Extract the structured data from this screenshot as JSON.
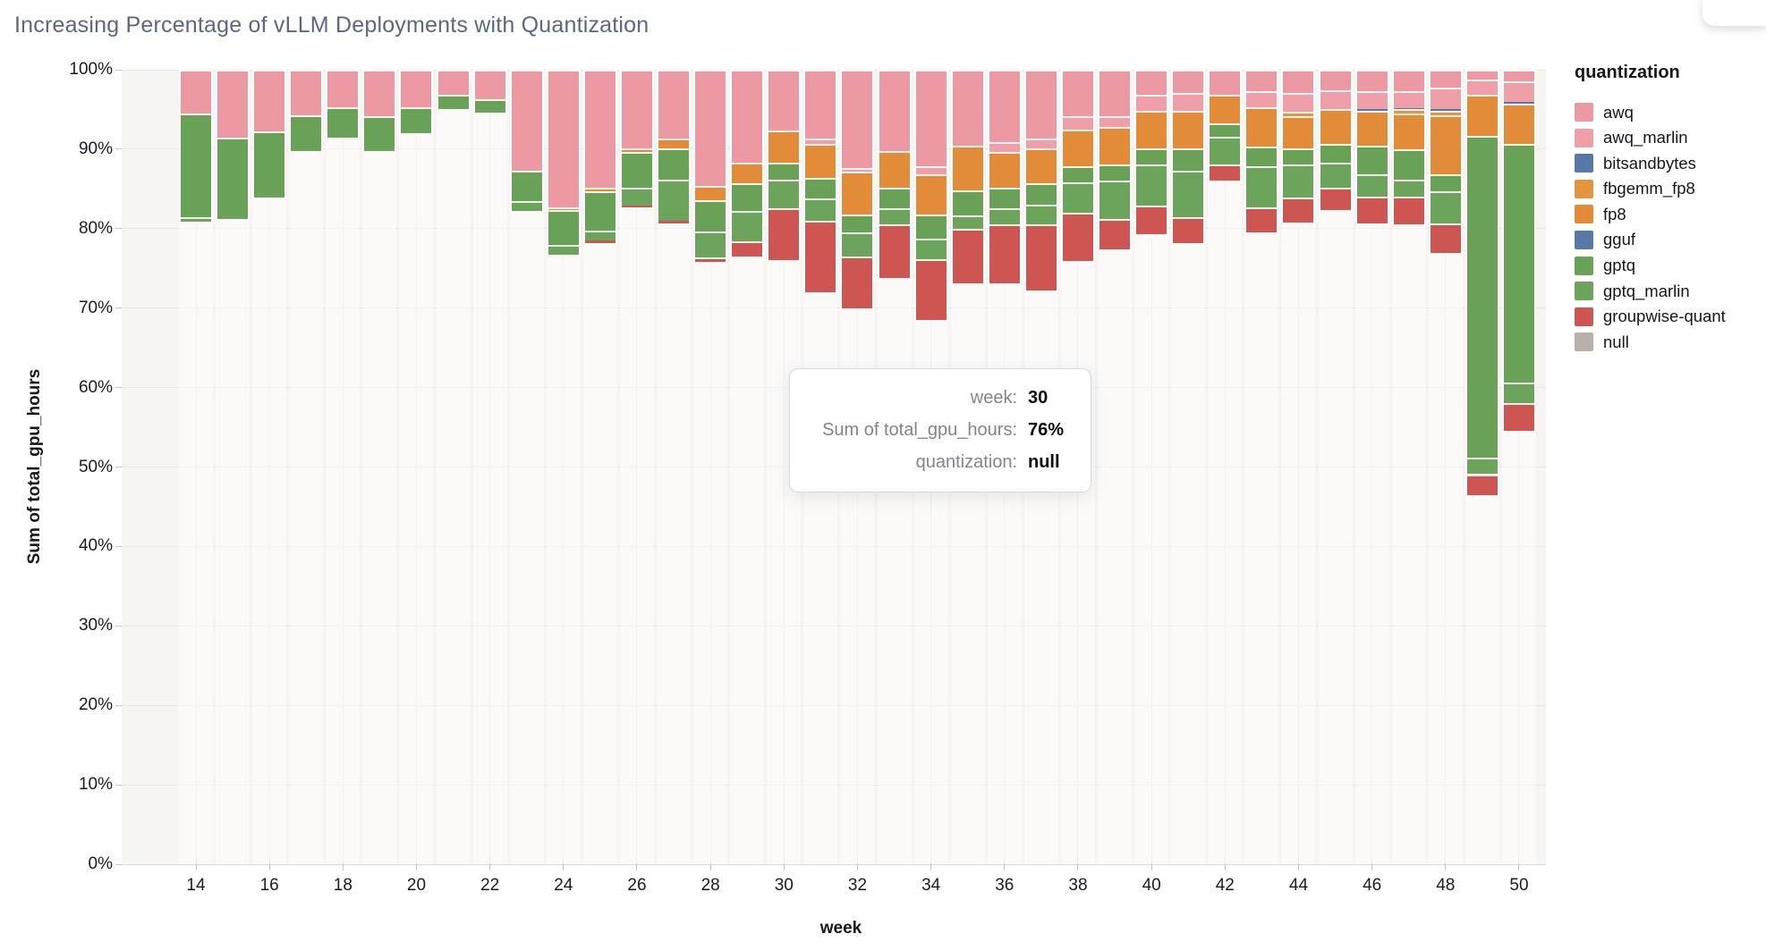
{
  "page": {
    "title": "Increasing Percentage of vLLM Deployments with Quantization"
  },
  "axes": {
    "x_title": "week",
    "y_title": "Sum of total_gpu_hours"
  },
  "legend": {
    "title": "quantization",
    "items": [
      {
        "label": "awq",
        "color": "#ec99a3"
      },
      {
        "label": "awq_marlin",
        "color": "#ee9fa8"
      },
      {
        "label": "bitsandbytes",
        "color": "#5878a8"
      },
      {
        "label": "fbgemm_fp8",
        "color": "#e6953f"
      },
      {
        "label": "fp8",
        "color": "#e28b38"
      },
      {
        "label": "gguf",
        "color": "#5878a8"
      },
      {
        "label": "gptq",
        "color": "#69a157"
      },
      {
        "label": "gptq_marlin",
        "color": "#6ca45c"
      },
      {
        "label": "groupwise-quant",
        "color": "#cd5653"
      },
      {
        "label": "null",
        "color": "#b9b0ac"
      }
    ]
  },
  "tooltip": {
    "rows": [
      {
        "label": "week:",
        "value": "30"
      },
      {
        "label": "Sum of total_gpu_hours:",
        "value": "76%"
      },
      {
        "label": "quantization:",
        "value": "null"
      }
    ]
  },
  "chart_data": {
    "type": "bar",
    "stacked": true,
    "normalized": "percent",
    "title": "Increasing Percentage of vLLM Deployments with Quantization",
    "xlabel": "week",
    "ylabel": "Sum of total_gpu_hours",
    "ylim": [
      0,
      100
    ],
    "y_ticks_percent": [
      0,
      10,
      20,
      30,
      40,
      50,
      60,
      70,
      80,
      90,
      100
    ],
    "x_ticks": [
      14,
      16,
      18,
      20,
      22,
      24,
      26,
      28,
      30,
      32,
      34,
      36,
      38,
      40,
      42,
      44,
      46,
      48,
      50
    ],
    "weeks": [
      14,
      15,
      16,
      17,
      18,
      19,
      20,
      21,
      22,
      23,
      24,
      25,
      26,
      27,
      28,
      29,
      30,
      31,
      32,
      33,
      34,
      35,
      36,
      37,
      38,
      39,
      40,
      41,
      42,
      43,
      44,
      45,
      46,
      47,
      48,
      49,
      50
    ],
    "stack_order_top_to_bottom": [
      "awq",
      "awq_marlin",
      "bitsandbytes",
      "fbgemm_fp8",
      "fp8",
      "gguf",
      "gptq",
      "gptq_marlin",
      "groupwise-quant",
      "null"
    ],
    "series": [
      {
        "name": "awq",
        "color": "#ec99a3",
        "values": [
          5.5,
          8.5,
          7.8,
          5.7,
          4.7,
          5.9,
          4.7,
          3.2,
          3.7,
          12.7,
          17.3,
          14.9,
          9.9,
          8.7,
          14.6,
          11.7,
          7.7,
          8.7,
          12.4,
          10.2,
          12.1,
          9.6,
          9.1,
          8.7,
          5.9,
          5.9,
          3.2,
          2.9,
          3.1,
          2.7,
          2.9,
          2.6,
          2.7,
          2.7,
          2.3,
          1.2,
          1.5
        ]
      },
      {
        "name": "awq_marlin",
        "color": "#ee9fa8",
        "values": [
          0,
          0,
          0,
          0,
          0,
          0,
          0,
          0,
          0,
          0,
          0,
          0,
          0,
          0,
          0,
          0,
          0,
          0.6,
          0.4,
          0,
          1.1,
          0,
          1.3,
          1.2,
          1.6,
          1.3,
          2.0,
          2.3,
          0,
          2.0,
          2.4,
          2.3,
          2.3,
          2.1,
          2.7,
          2.0,
          2.6
        ]
      },
      {
        "name": "bitsandbytes",
        "color": "#5878a8",
        "values": [
          0,
          0,
          0,
          0,
          0,
          0,
          0,
          0,
          0,
          0,
          0,
          0,
          0,
          0,
          0,
          0,
          0,
          0,
          0,
          0,
          0,
          0,
          0,
          0,
          0,
          0,
          0,
          0,
          0,
          0,
          0,
          0,
          0.2,
          0.2,
          0.2,
          0,
          0.2
        ]
      },
      {
        "name": "fbgemm_fp8",
        "color": "#e6953f",
        "values": [
          0,
          0,
          0,
          0,
          0,
          0,
          0,
          0,
          0,
          0,
          0,
          0,
          0,
          0,
          0,
          0,
          0,
          0,
          0,
          0,
          0,
          0,
          0,
          0,
          0,
          0,
          0,
          0,
          0,
          0,
          0.5,
          0,
          0,
          0.5,
          0.5,
          0,
          0
        ]
      },
      {
        "name": "fp8",
        "color": "#e28b38",
        "values": [
          0,
          0,
          0,
          0,
          0,
          0,
          0,
          0,
          0,
          0,
          0.4,
          0.4,
          0.5,
          1.2,
          1.8,
          2.6,
          4.0,
          4.3,
          5.4,
          4.7,
          5.0,
          5.6,
          4.4,
          4.4,
          4.7,
          4.7,
          4.7,
          4.7,
          3.6,
          5.0,
          4.1,
          4.4,
          4.4,
          4.5,
          7.5,
          5.1,
          5.0
        ]
      },
      {
        "name": "gguf",
        "color": "#5878a8",
        "values": [
          0,
          0,
          0,
          0,
          0,
          0,
          0,
          0,
          0,
          0,
          0,
          0,
          0,
          0,
          0,
          0,
          0,
          0,
          0,
          0,
          0,
          0,
          0,
          0,
          0,
          0,
          0,
          0,
          0,
          0,
          0,
          0,
          0,
          0,
          0,
          0,
          0
        ]
      },
      {
        "name": "gptq",
        "color": "#69a157",
        "values": [
          13.1,
          10.0,
          8.0,
          4.3,
          3.6,
          4.1,
          3.1,
          1.4,
          1.4,
          3.8,
          4.4,
          5.0,
          4.4,
          3.9,
          4.0,
          3.5,
          2.1,
          2.6,
          2.3,
          2.5,
          3.1,
          3.1,
          2.6,
          2.7,
          2.0,
          2.1,
          2.0,
          2.8,
          1.7,
          2.5,
          2.0,
          2.4,
          3.6,
          3.8,
          2.1,
          40.5,
          30.1
        ]
      },
      {
        "name": "gptq_marlin",
        "color": "#6ca45c",
        "values": [
          0.5,
          0.3,
          0.3,
          0.2,
          0.2,
          0.2,
          0.2,
          0.3,
          0.3,
          1.3,
          1.2,
          1.2,
          2.3,
          5.2,
          3.2,
          3.8,
          3.6,
          2.8,
          3.0,
          2.1,
          2.5,
          1.7,
          2.1,
          2.5,
          3.8,
          4.8,
          5.2,
          5.9,
          3.5,
          5.1,
          4.2,
          3.2,
          2.8,
          2.2,
          4.1,
          2.1,
          2.6
        ]
      },
      {
        "name": "groupwise-quant",
        "color": "#cd5653",
        "values": [
          0,
          0,
          0,
          0,
          0,
          0,
          0,
          0,
          0,
          0,
          0,
          0.3,
          0.2,
          0.3,
          0.6,
          1.9,
          6.6,
          9.0,
          6.5,
          6.7,
          7.7,
          6.9,
          7.4,
          8.3,
          6.1,
          3.8,
          3.6,
          3.2,
          2.0,
          3.2,
          3.1,
          2.8,
          3.4,
          3.5,
          3.7,
          2.6,
          3.4
        ]
      },
      {
        "name": "null",
        "color": "#b9b0ac",
        "values": [
          80.9,
          81.2,
          83.9,
          89.8,
          91.5,
          89.8,
          92.0,
          95.1,
          94.6,
          82.2,
          76.7,
          78.2,
          82.7,
          80.7,
          75.8,
          76.5,
          76.0,
          72.0,
          70.0,
          73.8,
          68.5,
          73.1,
          73.1,
          72.2,
          75.9,
          77.4,
          79.3,
          78.2,
          86.1,
          79.5,
          80.8,
          82.3,
          80.6,
          80.5,
          76.9,
          46.5,
          54.6
        ]
      }
    ]
  }
}
